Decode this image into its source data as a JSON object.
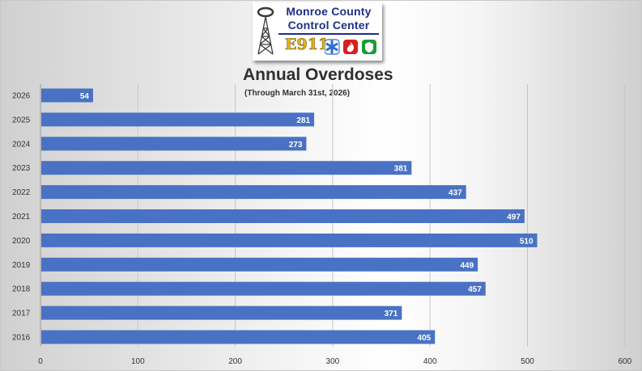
{
  "logo": {
    "line1": "Monroe County",
    "line2": "Control Center",
    "emblem_text": "E911"
  },
  "chart_data": {
    "type": "bar",
    "orientation": "horizontal",
    "title": "Annual Overdoses",
    "subtitle": "(Through March 31st, 2026)",
    "categories": [
      "2026",
      "2025",
      "2024",
      "2023",
      "2022",
      "2021",
      "2020",
      "2019",
      "2018",
      "2017",
      "2016"
    ],
    "values": [
      54,
      281,
      273,
      381,
      437,
      497,
      510,
      449,
      457,
      371,
      405
    ],
    "xlim": [
      0,
      600
    ],
    "x_ticks": [
      0,
      100,
      200,
      300,
      400,
      500,
      600
    ],
    "grid": true,
    "legend": "none",
    "bar_color": "#4a72c4",
    "label_color": "#ffffff"
  }
}
